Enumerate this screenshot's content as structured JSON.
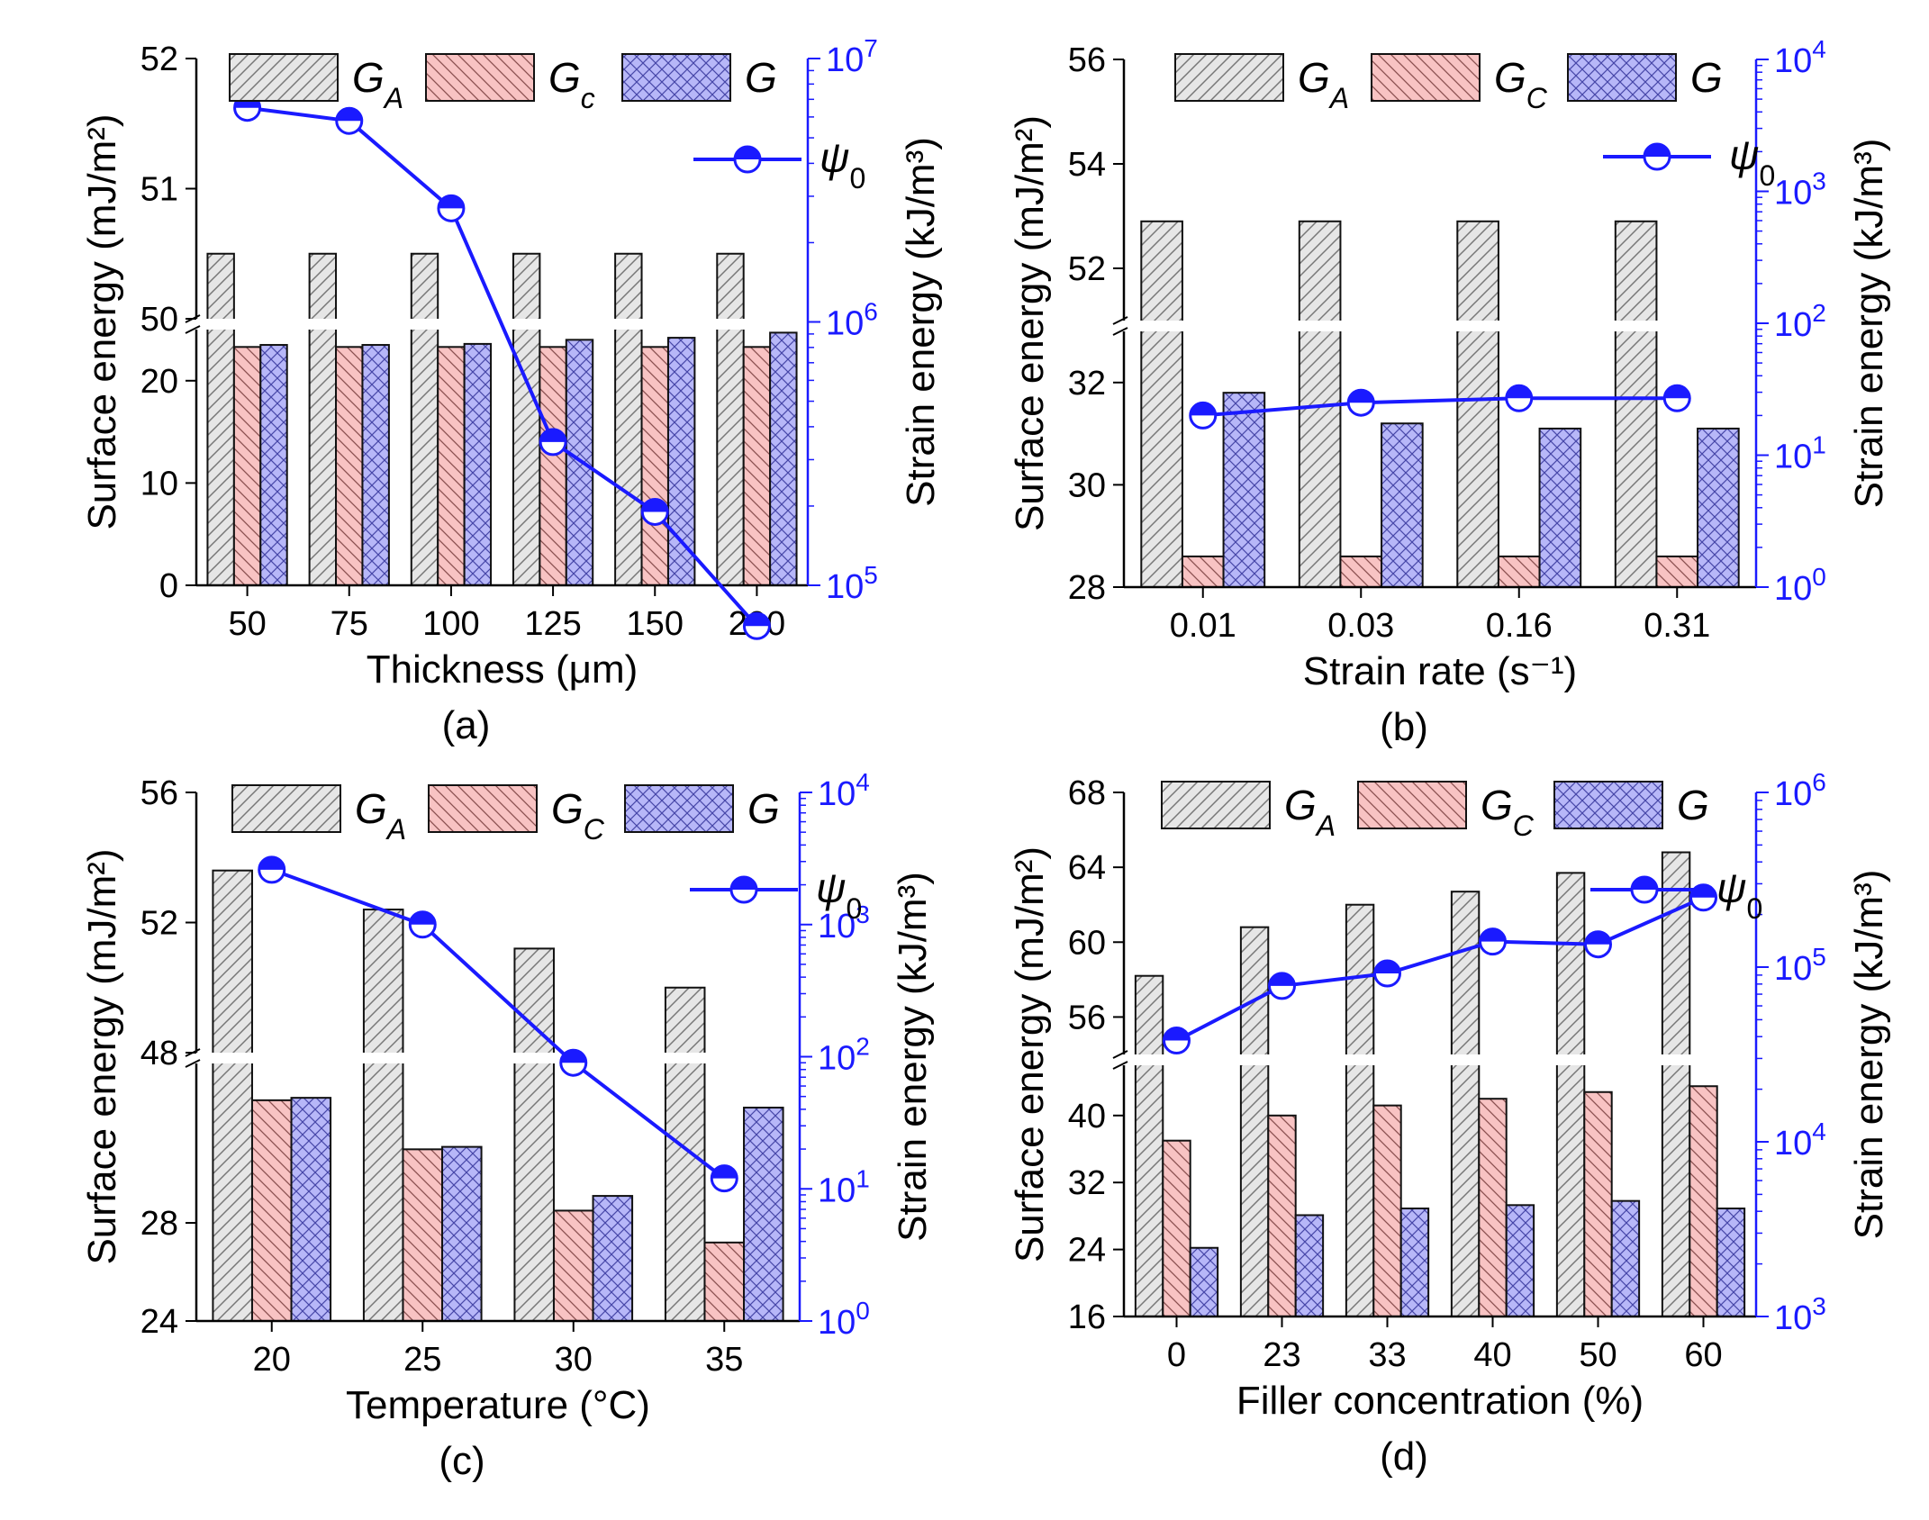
{
  "chart_data": [
    {
      "type": "bar",
      "panel": "a",
      "caption": "(a)",
      "categories": [
        "50",
        "75",
        "100",
        "125",
        "150",
        "200"
      ],
      "xlabel": "Thickness (μm)",
      "ylabel": "Surface energy (mJ/m²)",
      "y2label": "Strain energy (kJ/m³)",
      "y_break": {
        "lower": [
          0,
          25
        ],
        "upper": [
          50,
          52
        ]
      },
      "yticks_lower": [
        "0",
        "10",
        "20"
      ],
      "yticks_upper": [
        "50",
        "51",
        "52"
      ],
      "y2_log_range": [
        100000,
        10000000
      ],
      "y2ticks": [
        {
          "base": "10",
          "exp": "5"
        },
        {
          "base": "10",
          "exp": "6"
        },
        {
          "base": "10",
          "exp": "7"
        }
      ],
      "legend": {
        "GA": "A",
        "GC": "c",
        "G": "G",
        "psi": "0"
      },
      "series": [
        {
          "name": "G_A",
          "values": [
            50.5,
            50.5,
            50.5,
            50.5,
            50.5,
            50.5
          ]
        },
        {
          "name": "G_c",
          "values": [
            23.3,
            23.3,
            23.3,
            23.3,
            23.3,
            23.3
          ]
        },
        {
          "name": "G",
          "values": [
            23.5,
            23.5,
            23.6,
            24.0,
            24.2,
            24.7
          ]
        },
        {
          "name": "ψ_0",
          "axis": "right",
          "values": [
            6500000,
            5800000,
            2700000,
            350000,
            190000,
            70000
          ]
        }
      ]
    },
    {
      "type": "bar",
      "panel": "b",
      "caption": "(b)",
      "categories": [
        "0.01",
        "0.03",
        "0.16",
        "0.31"
      ],
      "xlabel": "Strain rate (s⁻¹)",
      "ylabel": "Surface energy (mJ/m²)",
      "y2label": "Strain energy (kJ/m³)",
      "y_break": {
        "lower": [
          28,
          33
        ],
        "upper": [
          51,
          56
        ]
      },
      "yticks_lower": [
        "28",
        "30",
        "32"
      ],
      "yticks_upper": [
        "52",
        "54",
        "56"
      ],
      "y2_log_range": [
        1,
        10000
      ],
      "y2ticks": [
        {
          "base": "10",
          "exp": "0"
        },
        {
          "base": "10",
          "exp": "1"
        },
        {
          "base": "10",
          "exp": "2"
        },
        {
          "base": "10",
          "exp": "3"
        },
        {
          "base": "10",
          "exp": "4"
        }
      ],
      "legend": {
        "GA": "A",
        "GC": "C",
        "G": "G",
        "psi": "0"
      },
      "series": [
        {
          "name": "G_A",
          "values": [
            52.9,
            52.9,
            52.9,
            52.9
          ]
        },
        {
          "name": "G_C",
          "values": [
            28.6,
            28.6,
            28.6,
            28.6
          ]
        },
        {
          "name": "G",
          "values": [
            31.8,
            31.2,
            31.1,
            31.1
          ]
        },
        {
          "name": "ψ_0",
          "axis": "right",
          "values": [
            20,
            25,
            27,
            27
          ]
        }
      ]
    },
    {
      "type": "bar",
      "panel": "c",
      "caption": "(c)",
      "categories": [
        "20",
        "25",
        "30",
        "35"
      ],
      "xlabel": "Temperature (°C)",
      "ylabel": "Surface energy (mJ/m²)",
      "y2label": "Strain energy (kJ/m³)",
      "y_break": {
        "lower": [
          24,
          34.5
        ],
        "upper": [
          48,
          56
        ]
      },
      "yticks_lower": [
        "24",
        "28"
      ],
      "yticks_upper": [
        "48",
        "52",
        "56"
      ],
      "y2_log_range": [
        1,
        10000
      ],
      "y2ticks": [
        {
          "base": "10",
          "exp": "0"
        },
        {
          "base": "10",
          "exp": "1"
        },
        {
          "base": "10",
          "exp": "2"
        },
        {
          "base": "10",
          "exp": "3"
        },
        {
          "base": "10",
          "exp": "4"
        }
      ],
      "legend": {
        "GA": "A",
        "GC": "C",
        "G": "G",
        "psi": "0"
      },
      "series": [
        {
          "name": "G_A",
          "values": [
            53.6,
            52.4,
            51.2,
            50.0
          ]
        },
        {
          "name": "G_C",
          "values": [
            33.0,
            31.0,
            28.5,
            27.2
          ]
        },
        {
          "name": "G",
          "values": [
            33.1,
            31.1,
            29.1,
            32.7
          ]
        },
        {
          "name": "ψ_0",
          "axis": "right",
          "values": [
            2600,
            1000,
            90,
            12
          ]
        }
      ]
    },
    {
      "type": "bar",
      "panel": "d",
      "caption": "(d)",
      "categories": [
        "0",
        "23",
        "33",
        "40",
        "50",
        "60"
      ],
      "xlabel": "Filler concentration (%)",
      "ylabel": "Surface energy (mJ/m²)",
      "y2label": "Strain energy (kJ/m³)",
      "y_break": {
        "lower": [
          16,
          46
        ],
        "upper": [
          54,
          68
        ]
      },
      "yticks_lower": [
        "16",
        "24",
        "32",
        "40"
      ],
      "yticks_upper": [
        "56",
        "60",
        "64",
        "68"
      ],
      "y2_log_range": [
        1000,
        1000000
      ],
      "y2ticks": [
        {
          "base": "10",
          "exp": "3"
        },
        {
          "base": "10",
          "exp": "4"
        },
        {
          "base": "10",
          "exp": "5"
        },
        {
          "base": "10",
          "exp": "6"
        }
      ],
      "legend": {
        "GA": "A",
        "GC": "C",
        "G": "G",
        "psi": "0"
      },
      "series": [
        {
          "name": "G_A",
          "values": [
            58.2,
            60.8,
            62.0,
            62.7,
            63.7,
            64.8
          ]
        },
        {
          "name": "G_C",
          "values": [
            37.0,
            40.0,
            41.2,
            42.0,
            42.8,
            43.5
          ]
        },
        {
          "name": "G",
          "values": [
            24.2,
            28.1,
            28.9,
            29.3,
            29.8,
            28.9
          ]
        },
        {
          "name": "ψ_0",
          "axis": "right",
          "values": [
            38000,
            78000,
            92000,
            140000,
            135000,
            250000
          ]
        }
      ]
    }
  ]
}
